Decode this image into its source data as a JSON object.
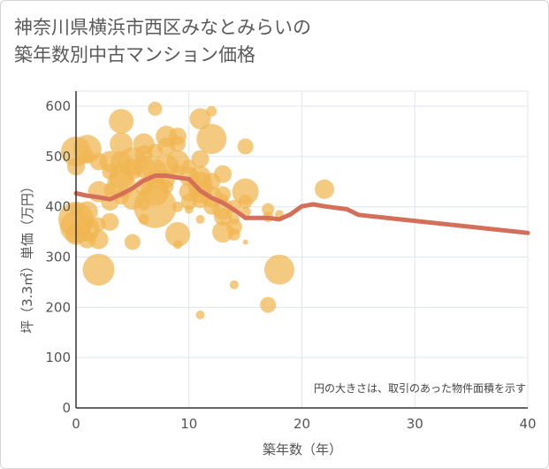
{
  "title_line1": "神奈川県横浜市西区みなとみらいの",
  "title_line2": "築年数別中古マンション価格",
  "chart_data": {
    "type": "scatter",
    "title": "神奈川県横浜市西区みなとみらいの築年数別中古マンション価格",
    "xlabel": "築年数（年）",
    "ylabel": "坪（3.3㎡）単価（万円）",
    "xlim": [
      0,
      40
    ],
    "ylim": [
      0,
      630
    ],
    "x_ticks": [
      0,
      10,
      20,
      30,
      40
    ],
    "y_ticks": [
      0,
      100,
      200,
      300,
      400,
      500,
      600
    ],
    "note": "円の大きさは、取引のあった物件面積を示す",
    "colors": {
      "bubble": "#f0b550",
      "trend": "#d4705a",
      "grid": "#dfe6ee"
    },
    "trend": {
      "x": [
        0,
        1,
        2,
        3,
        4,
        5,
        6,
        7,
        8,
        9,
        10,
        11,
        12,
        13,
        14,
        15,
        16,
        17,
        18,
        19,
        20,
        21,
        22,
        23,
        24,
        25,
        30,
        35,
        40
      ],
      "y": [
        427,
        422,
        419,
        415,
        425,
        437,
        452,
        462,
        462,
        458,
        455,
        432,
        418,
        408,
        394,
        378,
        378,
        378,
        375,
        385,
        401,
        405,
        401,
        398,
        395,
        384,
        372,
        360,
        348
      ]
    },
    "points": [
      {
        "x": 0,
        "y": 510,
        "s": 17
      },
      {
        "x": 0,
        "y": 480,
        "s": 10
      },
      {
        "x": 0,
        "y": 395,
        "s": 7
      },
      {
        "x": 0,
        "y": 360,
        "s": 18
      },
      {
        "x": 0,
        "y": 345,
        "s": 12
      },
      {
        "x": 0,
        "y": 375,
        "s": 20
      },
      {
        "x": 1,
        "y": 515,
        "s": 16
      },
      {
        "x": 1,
        "y": 500,
        "s": 8
      },
      {
        "x": 1,
        "y": 390,
        "s": 12
      },
      {
        "x": 1,
        "y": 355,
        "s": 14
      },
      {
        "x": 1,
        "y": 335,
        "s": 10
      },
      {
        "x": 2,
        "y": 275,
        "s": 18
      },
      {
        "x": 2,
        "y": 335,
        "s": 11
      },
      {
        "x": 2,
        "y": 365,
        "s": 8
      },
      {
        "x": 2,
        "y": 490,
        "s": 10
      },
      {
        "x": 2,
        "y": 430,
        "s": 12
      },
      {
        "x": 3,
        "y": 490,
        "s": 12
      },
      {
        "x": 3,
        "y": 470,
        "s": 9
      },
      {
        "x": 3,
        "y": 410,
        "s": 10
      },
      {
        "x": 3,
        "y": 370,
        "s": 10
      },
      {
        "x": 3,
        "y": 435,
        "s": 7
      },
      {
        "x": 4,
        "y": 570,
        "s": 14
      },
      {
        "x": 4,
        "y": 525,
        "s": 13
      },
      {
        "x": 4,
        "y": 490,
        "s": 12
      },
      {
        "x": 4,
        "y": 460,
        "s": 14
      },
      {
        "x": 4,
        "y": 445,
        "s": 16
      },
      {
        "x": 4,
        "y": 420,
        "s": 9
      },
      {
        "x": 5,
        "y": 475,
        "s": 12
      },
      {
        "x": 5,
        "y": 490,
        "s": 16
      },
      {
        "x": 5,
        "y": 415,
        "s": 12
      },
      {
        "x": 5,
        "y": 330,
        "s": 9
      },
      {
        "x": 6,
        "y": 525,
        "s": 12
      },
      {
        "x": 6,
        "y": 505,
        "s": 10
      },
      {
        "x": 6,
        "y": 480,
        "s": 13
      },
      {
        "x": 6,
        "y": 440,
        "s": 10
      },
      {
        "x": 6,
        "y": 405,
        "s": 7
      },
      {
        "x": 6,
        "y": 375,
        "s": 6
      },
      {
        "x": 7,
        "y": 595,
        "s": 8
      },
      {
        "x": 7,
        "y": 510,
        "s": 9
      },
      {
        "x": 7,
        "y": 470,
        "s": 14
      },
      {
        "x": 7,
        "y": 430,
        "s": 16
      },
      {
        "x": 7,
        "y": 400,
        "s": 24
      },
      {
        "x": 7,
        "y": 455,
        "s": 10
      },
      {
        "x": 8,
        "y": 540,
        "s": 12
      },
      {
        "x": 8,
        "y": 520,
        "s": 10
      },
      {
        "x": 8,
        "y": 480,
        "s": 14
      },
      {
        "x": 8,
        "y": 455,
        "s": 10
      },
      {
        "x": 8,
        "y": 440,
        "s": 8
      },
      {
        "x": 9,
        "y": 540,
        "s": 10
      },
      {
        "x": 9,
        "y": 525,
        "s": 9
      },
      {
        "x": 9,
        "y": 490,
        "s": 13
      },
      {
        "x": 9,
        "y": 470,
        "s": 8
      },
      {
        "x": 9,
        "y": 345,
        "s": 14
      },
      {
        "x": 9,
        "y": 325,
        "s": 5
      },
      {
        "x": 9,
        "y": 400,
        "s": 6
      },
      {
        "x": 10,
        "y": 460,
        "s": 11
      },
      {
        "x": 10,
        "y": 480,
        "s": 8
      },
      {
        "x": 10,
        "y": 430,
        "s": 11
      },
      {
        "x": 10,
        "y": 410,
        "s": 9
      },
      {
        "x": 10,
        "y": 395,
        "s": 5
      },
      {
        "x": 11,
        "y": 575,
        "s": 12
      },
      {
        "x": 11,
        "y": 495,
        "s": 10
      },
      {
        "x": 11,
        "y": 460,
        "s": 12
      },
      {
        "x": 11,
        "y": 445,
        "s": 14
      },
      {
        "x": 11,
        "y": 430,
        "s": 13
      },
      {
        "x": 11,
        "y": 415,
        "s": 10
      },
      {
        "x": 11,
        "y": 185,
        "s": 5
      },
      {
        "x": 11,
        "y": 375,
        "s": 5
      },
      {
        "x": 12,
        "y": 590,
        "s": 6
      },
      {
        "x": 12,
        "y": 535,
        "s": 17
      },
      {
        "x": 12,
        "y": 450,
        "s": 10
      },
      {
        "x": 12,
        "y": 420,
        "s": 12
      },
      {
        "x": 12,
        "y": 400,
        "s": 9
      },
      {
        "x": 13,
        "y": 465,
        "s": 10
      },
      {
        "x": 13,
        "y": 425,
        "s": 9
      },
      {
        "x": 13,
        "y": 395,
        "s": 12
      },
      {
        "x": 13,
        "y": 380,
        "s": 10
      },
      {
        "x": 13,
        "y": 350,
        "s": 12
      },
      {
        "x": 13,
        "y": 415,
        "s": 6
      },
      {
        "x": 14,
        "y": 400,
        "s": 8
      },
      {
        "x": 14,
        "y": 375,
        "s": 6
      },
      {
        "x": 14,
        "y": 360,
        "s": 9
      },
      {
        "x": 14,
        "y": 345,
        "s": 7
      },
      {
        "x": 14,
        "y": 245,
        "s": 5
      },
      {
        "x": 15,
        "y": 520,
        "s": 9
      },
      {
        "x": 15,
        "y": 430,
        "s": 15
      },
      {
        "x": 15,
        "y": 410,
        "s": 8
      },
      {
        "x": 15,
        "y": 390,
        "s": 6
      },
      {
        "x": 15,
        "y": 330,
        "s": 3
      },
      {
        "x": 17,
        "y": 395,
        "s": 7
      },
      {
        "x": 17,
        "y": 380,
        "s": 6
      },
      {
        "x": 17,
        "y": 205,
        "s": 9
      },
      {
        "x": 18,
        "y": 275,
        "s": 17
      },
      {
        "x": 18,
        "y": 385,
        "s": 5
      },
      {
        "x": 22,
        "y": 435,
        "s": 11
      }
    ]
  }
}
